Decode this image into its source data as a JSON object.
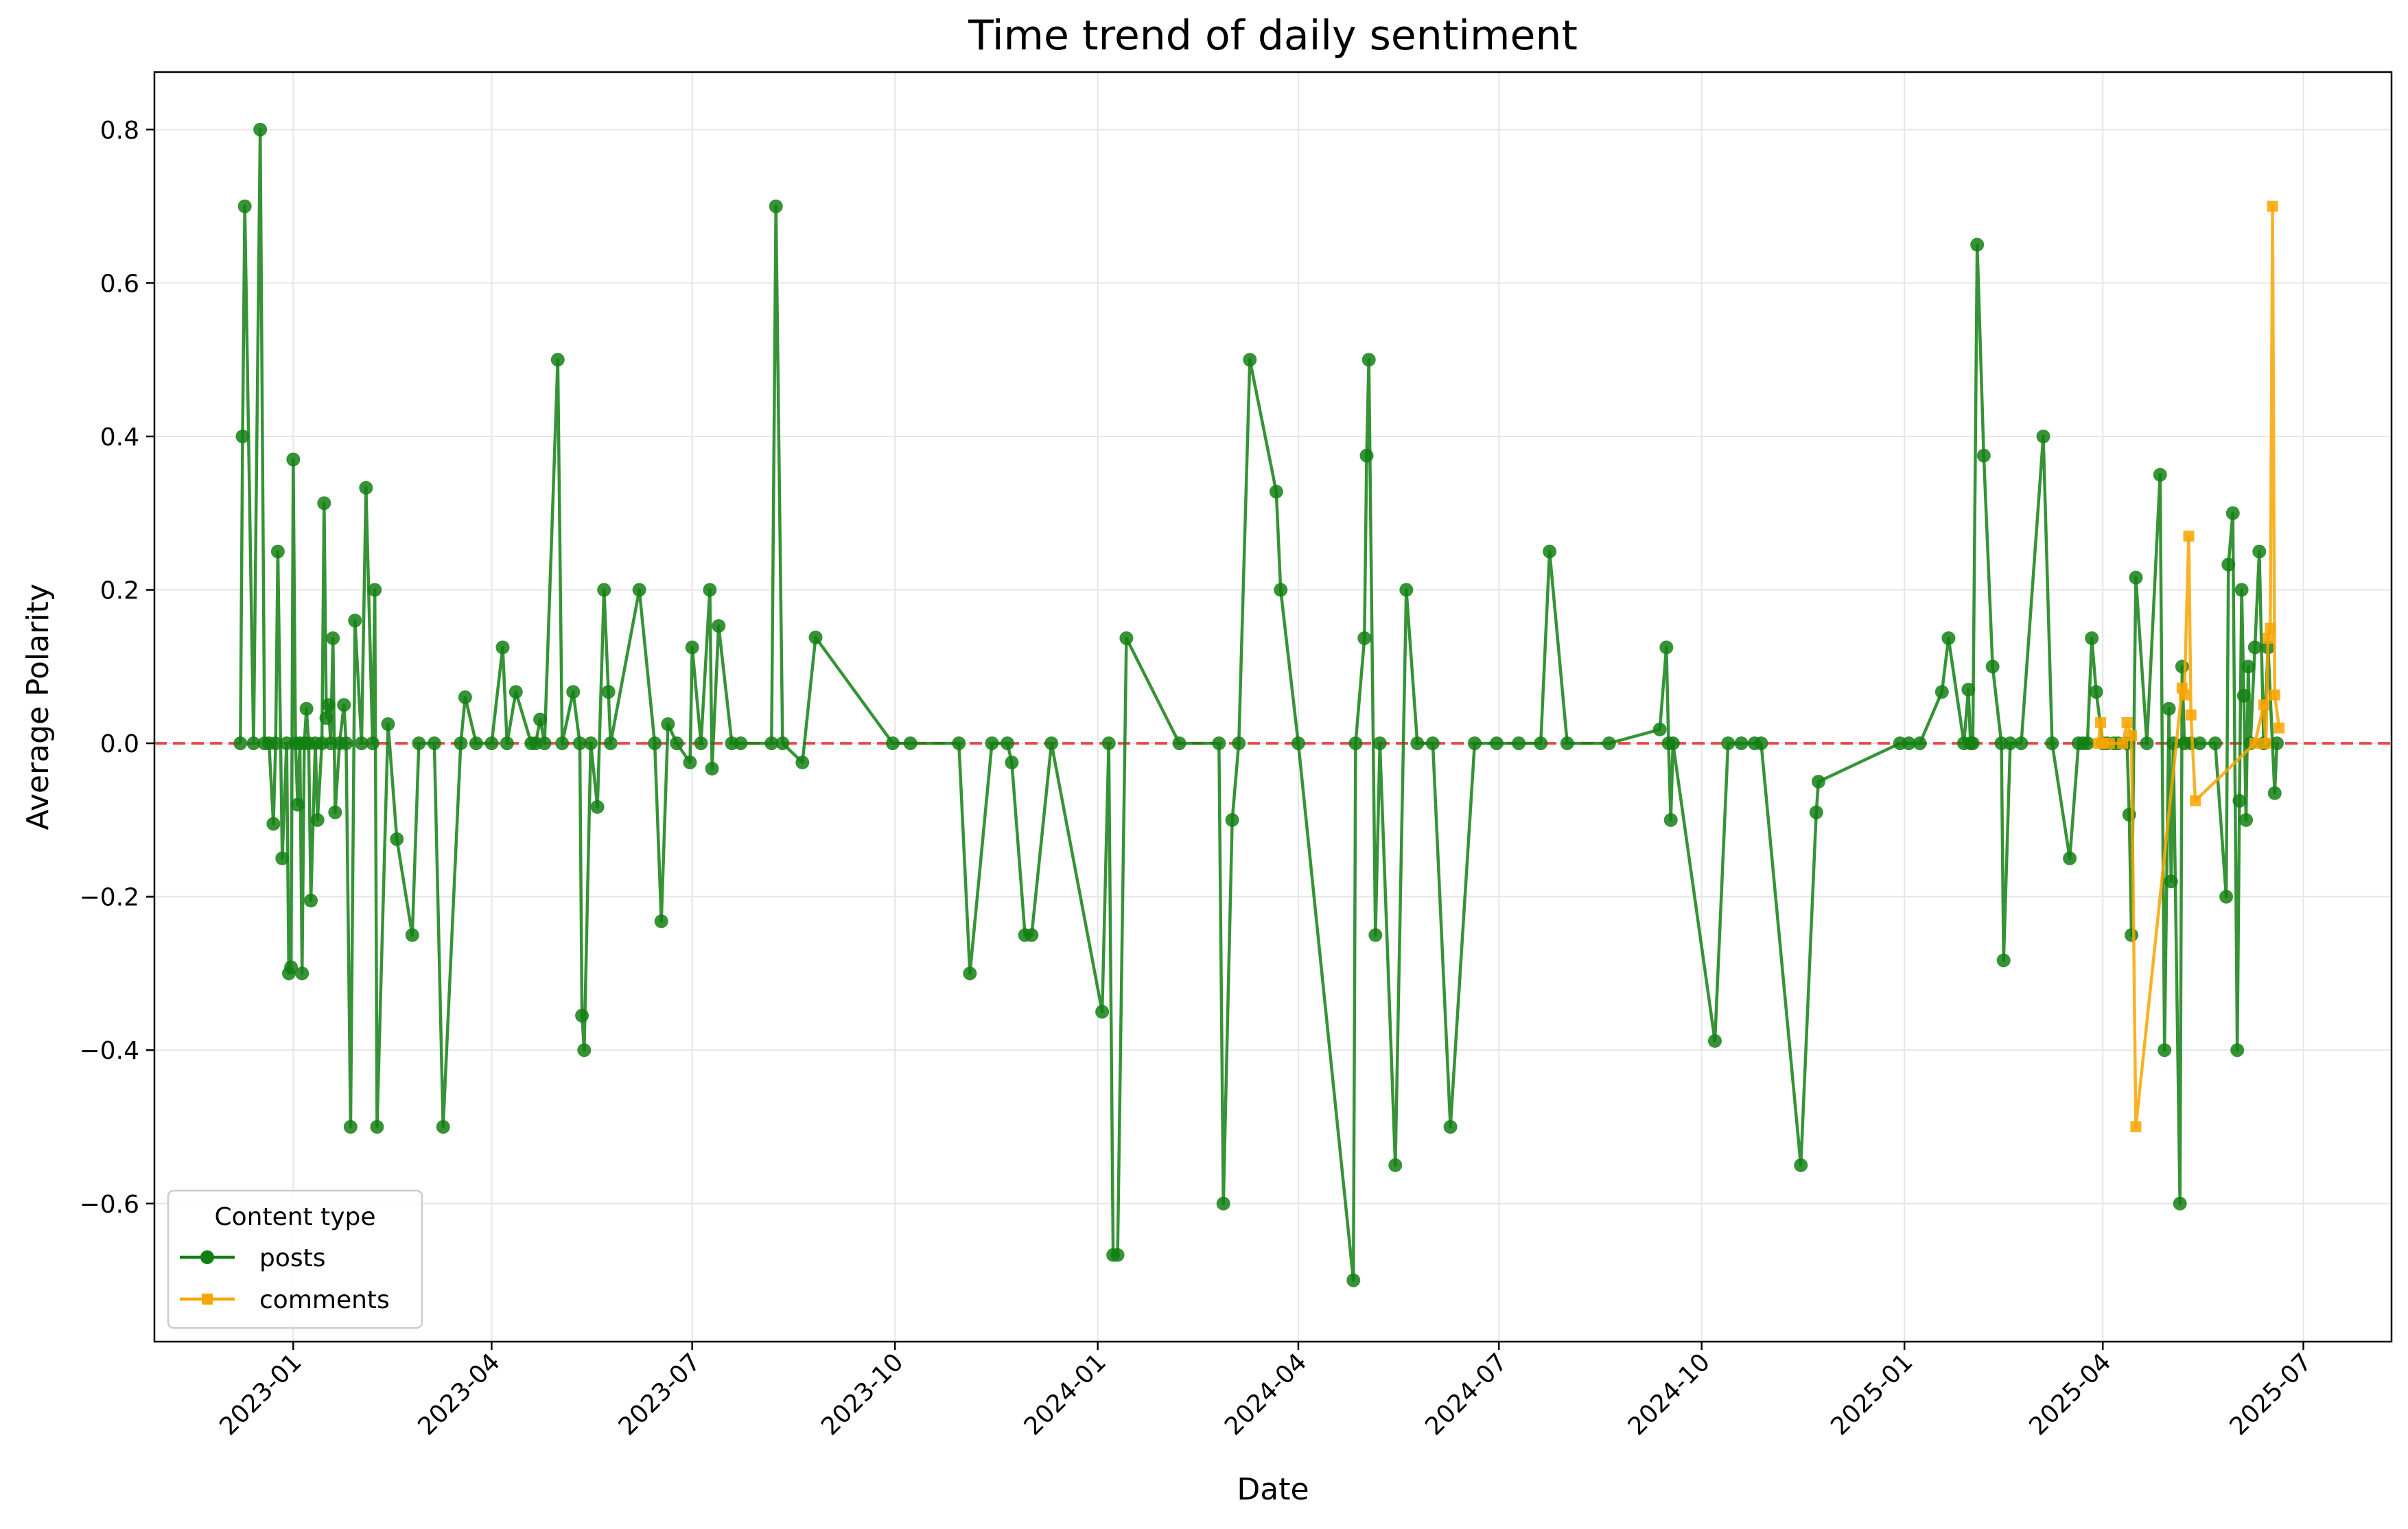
{
  "chart_data": {
    "type": "line",
    "title": "Time trend of daily sentiment",
    "xlabel": "Date",
    "ylabel": "Average Polarity",
    "xlim": [
      "2022-10-30",
      "2025-08-10"
    ],
    "ylim": [
      -0.78,
      0.875
    ],
    "x_ticks": [
      "2023-01-01",
      "2023-04-01",
      "2023-07-01",
      "2023-10-01",
      "2024-01-01",
      "2024-04-01",
      "2024-07-01",
      "2024-10-01",
      "2025-01-01",
      "2025-04-01",
      "2025-07-01"
    ],
    "x_tick_labels": [
      "2023-01",
      "2023-04",
      "2023-07",
      "2023-10",
      "2024-01",
      "2024-04",
      "2024-07",
      "2024-10",
      "2025-01",
      "2025-04",
      "2025-07"
    ],
    "y_ticks": [
      -0.6,
      -0.4,
      -0.2,
      0.0,
      0.2,
      0.4,
      0.6,
      0.8
    ],
    "y_tick_labels": [
      "−0.6",
      "−0.4",
      "−0.2",
      "0.0",
      "0.2",
      "0.4",
      "0.6",
      "0.8"
    ],
    "grid": true,
    "reference_line": {
      "y": 0.0,
      "style": "dashed",
      "color": "#e8282b"
    },
    "legend": {
      "title": "Content type",
      "placement": "lower-left"
    },
    "colors": {
      "posts": "#138013",
      "comments": "#f8a500",
      "grid": "#e6e6e6"
    },
    "series": [
      {
        "name": "posts",
        "marker": "circle",
        "points": [
          [
            "2022-12-08",
            0.0
          ],
          [
            "2022-12-09",
            0.4
          ],
          [
            "2022-12-10",
            0.7
          ],
          [
            "2022-12-14",
            0.0
          ],
          [
            "2022-12-17",
            0.8
          ],
          [
            "2022-12-19",
            0.0
          ],
          [
            "2022-12-21",
            0.0
          ],
          [
            "2022-12-23",
            -0.105
          ],
          [
            "2022-12-24",
            0.0
          ],
          [
            "2022-12-25",
            0.25
          ],
          [
            "2022-12-27",
            -0.15
          ],
          [
            "2022-12-29",
            0.0
          ],
          [
            "2022-12-30",
            -0.3
          ],
          [
            "2022-12-31",
            -0.292
          ],
          [
            "2023-01-01",
            0.37
          ],
          [
            "2023-01-02",
            0.0
          ],
          [
            "2023-01-03",
            -0.08
          ],
          [
            "2023-01-04",
            0.0
          ],
          [
            "2023-01-05",
            -0.3
          ],
          [
            "2023-01-06",
            0.0
          ],
          [
            "2023-01-07",
            0.045
          ],
          [
            "2023-01-08",
            0.0
          ],
          [
            "2023-01-09",
            -0.205
          ],
          [
            "2023-01-11",
            0.0
          ],
          [
            "2023-01-12",
            -0.1
          ],
          [
            "2023-01-14",
            0.0
          ],
          [
            "2023-01-15",
            0.313
          ],
          [
            "2023-01-16",
            0.033
          ],
          [
            "2023-01-17",
            0.05
          ],
          [
            "2023-01-18",
            0.0
          ],
          [
            "2023-01-19",
            0.137
          ],
          [
            "2023-01-20",
            -0.09
          ],
          [
            "2023-01-22",
            0.0
          ],
          [
            "2023-01-24",
            0.05
          ],
          [
            "2023-01-25",
            0.0
          ],
          [
            "2023-01-27",
            -0.5
          ],
          [
            "2023-01-29",
            0.16
          ],
          [
            "2023-02-01",
            0.0
          ],
          [
            "2023-02-03",
            0.333
          ],
          [
            "2023-02-06",
            0.0
          ],
          [
            "2023-02-07",
            0.2
          ],
          [
            "2023-02-08",
            -0.5
          ],
          [
            "2023-02-13",
            0.025
          ],
          [
            "2023-02-17",
            -0.125
          ],
          [
            "2023-02-24",
            -0.25
          ],
          [
            "2023-02-27",
            0.0
          ],
          [
            "2023-03-06",
            0.0
          ],
          [
            "2023-03-10",
            -0.5
          ],
          [
            "2023-03-18",
            0.0
          ],
          [
            "2023-03-20",
            0.06
          ],
          [
            "2023-03-25",
            0.0
          ],
          [
            "2023-04-01",
            0.0
          ],
          [
            "2023-04-06",
            0.125
          ],
          [
            "2023-04-08",
            0.0
          ],
          [
            "2023-04-12",
            0.067
          ],
          [
            "2023-04-19",
            0.0
          ],
          [
            "2023-04-21",
            0.0
          ],
          [
            "2023-04-23",
            0.031
          ],
          [
            "2023-04-25",
            0.0
          ],
          [
            "2023-05-01",
            0.5
          ],
          [
            "2023-05-03",
            0.0
          ],
          [
            "2023-05-08",
            0.067
          ],
          [
            "2023-05-11",
            0.0
          ],
          [
            "2023-05-12",
            -0.355
          ],
          [
            "2023-05-13",
            -0.4
          ],
          [
            "2023-05-16",
            0.0
          ],
          [
            "2023-05-19",
            -0.083
          ],
          [
            "2023-05-22",
            0.2
          ],
          [
            "2023-05-24",
            0.067
          ],
          [
            "2023-05-25",
            0.0
          ],
          [
            "2023-06-07",
            0.2
          ],
          [
            "2023-06-14",
            0.0
          ],
          [
            "2023-06-17",
            -0.232
          ],
          [
            "2023-06-20",
            0.025
          ],
          [
            "2023-06-24",
            0.0
          ],
          [
            "2023-06-30",
            -0.025
          ],
          [
            "2023-07-01",
            0.125
          ],
          [
            "2023-07-05",
            0.0
          ],
          [
            "2023-07-09",
            0.2
          ],
          [
            "2023-07-10",
            -0.033
          ],
          [
            "2023-07-13",
            0.153
          ],
          [
            "2023-07-19",
            0.0
          ],
          [
            "2023-07-23",
            0.0
          ],
          [
            "2023-08-06",
            0.0
          ],
          [
            "2023-08-08",
            0.7
          ],
          [
            "2023-08-11",
            0.0
          ],
          [
            "2023-08-20",
            -0.025
          ],
          [
            "2023-08-26",
            0.138
          ],
          [
            "2023-09-30",
            0.0
          ],
          [
            "2023-10-08",
            0.0
          ],
          [
            "2023-10-30",
            0.0
          ],
          [
            "2023-11-04",
            -0.3
          ],
          [
            "2023-11-14",
            0.0
          ],
          [
            "2023-11-21",
            0.0
          ],
          [
            "2023-11-23",
            -0.025
          ],
          [
            "2023-11-29",
            -0.25
          ],
          [
            "2023-12-02",
            -0.25
          ],
          [
            "2023-12-11",
            0.0
          ],
          [
            "2024-01-03",
            -0.35
          ],
          [
            "2024-01-06",
            0.0
          ],
          [
            "2024-01-08",
            -0.667
          ],
          [
            "2024-01-10",
            -0.667
          ],
          [
            "2024-01-14",
            0.137
          ],
          [
            "2024-02-07",
            0.0
          ],
          [
            "2024-02-25",
            0.0
          ],
          [
            "2024-02-27",
            -0.6
          ],
          [
            "2024-03-02",
            -0.1
          ],
          [
            "2024-03-05",
            0.0
          ],
          [
            "2024-03-10",
            0.5
          ],
          [
            "2024-03-22",
            0.328
          ],
          [
            "2024-03-24",
            0.2
          ],
          [
            "2024-04-01",
            0.0
          ],
          [
            "2024-04-26",
            -0.7
          ],
          [
            "2024-04-27",
            0.0
          ],
          [
            "2024-05-01",
            0.137
          ],
          [
            "2024-05-02",
            0.375
          ],
          [
            "2024-05-03",
            0.5
          ],
          [
            "2024-05-06",
            -0.25
          ],
          [
            "2024-05-08",
            0.0
          ],
          [
            "2024-05-15",
            -0.55
          ],
          [
            "2024-05-20",
            0.2
          ],
          [
            "2024-05-25",
            0.0
          ],
          [
            "2024-06-01",
            0.0
          ],
          [
            "2024-06-09",
            -0.5
          ],
          [
            "2024-06-20",
            0.0
          ],
          [
            "2024-06-30",
            0.0
          ],
          [
            "2024-07-10",
            0.0
          ],
          [
            "2024-07-20",
            0.0
          ],
          [
            "2024-07-24",
            0.25
          ],
          [
            "2024-08-01",
            0.0
          ],
          [
            "2024-08-20",
            0.0
          ],
          [
            "2024-09-12",
            0.018
          ],
          [
            "2024-09-15",
            0.125
          ],
          [
            "2024-09-16",
            0.0
          ],
          [
            "2024-09-17",
            -0.1
          ],
          [
            "2024-09-18",
            0.0
          ],
          [
            "2024-10-07",
            -0.388
          ],
          [
            "2024-10-13",
            0.0
          ],
          [
            "2024-10-19",
            0.0
          ],
          [
            "2024-10-25",
            0.0
          ],
          [
            "2024-10-28",
            0.0
          ],
          [
            "2024-11-15",
            -0.55
          ],
          [
            "2024-11-22",
            -0.09
          ],
          [
            "2024-11-23",
            -0.05
          ],
          [
            "2024-12-30",
            0.0
          ],
          [
            "2025-01-03",
            0.0
          ],
          [
            "2025-01-08",
            0.0
          ],
          [
            "2025-01-18",
            0.067
          ],
          [
            "2025-01-21",
            0.137
          ],
          [
            "2025-01-28",
            0.0
          ],
          [
            "2025-01-30",
            0.07
          ],
          [
            "2025-01-31",
            0.0
          ],
          [
            "2025-02-01",
            0.0
          ],
          [
            "2025-02-03",
            0.65
          ],
          [
            "2025-02-06",
            0.375
          ],
          [
            "2025-02-10",
            0.1
          ],
          [
            "2025-02-14",
            0.0
          ],
          [
            "2025-02-15",
            -0.283
          ],
          [
            "2025-02-18",
            0.0
          ],
          [
            "2025-02-23",
            0.0
          ],
          [
            "2025-03-05",
            0.4
          ],
          [
            "2025-03-09",
            0.0
          ],
          [
            "2025-03-17",
            -0.15
          ],
          [
            "2025-03-21",
            0.0
          ],
          [
            "2025-03-23",
            0.0
          ],
          [
            "2025-03-25",
            0.0
          ],
          [
            "2025-03-27",
            0.137
          ],
          [
            "2025-03-29",
            0.067
          ],
          [
            "2025-04-01",
            0.0
          ],
          [
            "2025-04-03",
            0.0
          ],
          [
            "2025-04-06",
            0.0
          ],
          [
            "2025-04-08",
            0.0
          ],
          [
            "2025-04-12",
            0.0
          ],
          [
            "2025-04-13",
            -0.093
          ],
          [
            "2025-04-14",
            -0.25
          ],
          [
            "2025-04-16",
            0.216
          ],
          [
            "2025-04-21",
            0.0
          ],
          [
            "2025-04-27",
            0.35
          ],
          [
            "2025-04-29",
            -0.4
          ],
          [
            "2025-05-01",
            0.045
          ],
          [
            "2025-05-02",
            -0.18
          ],
          [
            "2025-05-03",
            0.0
          ],
          [
            "2025-05-06",
            -0.6
          ],
          [
            "2025-05-07",
            0.1
          ],
          [
            "2025-05-08",
            0.0
          ],
          [
            "2025-05-11",
            0.0
          ],
          [
            "2025-05-15",
            0.0
          ],
          [
            "2025-05-22",
            0.0
          ],
          [
            "2025-05-27",
            -0.2
          ],
          [
            "2025-05-28",
            0.233
          ],
          [
            "2025-05-30",
            0.3
          ],
          [
            "2025-06-01",
            -0.4
          ],
          [
            "2025-06-02",
            -0.075
          ],
          [
            "2025-06-03",
            0.2
          ],
          [
            "2025-06-04",
            0.062
          ],
          [
            "2025-06-05",
            -0.1
          ],
          [
            "2025-06-06",
            0.1
          ],
          [
            "2025-06-07",
            0.0
          ],
          [
            "2025-06-09",
            0.125
          ],
          [
            "2025-06-11",
            0.25
          ],
          [
            "2025-06-13",
            0.0
          ],
          [
            "2025-06-15",
            0.125
          ],
          [
            "2025-06-18",
            -0.065
          ],
          [
            "2025-06-19",
            0.0
          ]
        ]
      },
      {
        "name": "comments",
        "marker": "square",
        "points": [
          [
            "2025-03-30",
            0.0
          ],
          [
            "2025-03-31",
            0.027
          ],
          [
            "2025-04-01",
            0.0
          ],
          [
            "2025-04-04",
            0.0
          ],
          [
            "2025-04-10",
            0.0
          ],
          [
            "2025-04-12",
            0.027
          ],
          [
            "2025-04-14",
            0.01
          ],
          [
            "2025-04-16",
            -0.5
          ],
          [
            "2025-05-07",
            0.072
          ],
          [
            "2025-05-08",
            0.063
          ],
          [
            "2025-05-10",
            0.27
          ],
          [
            "2025-05-11",
            0.037
          ],
          [
            "2025-05-13",
            -0.075
          ],
          [
            "2025-06-09",
            0.0
          ],
          [
            "2025-06-13",
            0.05
          ],
          [
            "2025-06-14",
            0.0
          ],
          [
            "2025-06-15",
            0.137
          ],
          [
            "2025-06-16",
            0.15
          ],
          [
            "2025-06-17",
            0.7
          ],
          [
            "2025-06-18",
            0.063
          ],
          [
            "2025-06-20",
            0.02
          ]
        ]
      }
    ]
  }
}
